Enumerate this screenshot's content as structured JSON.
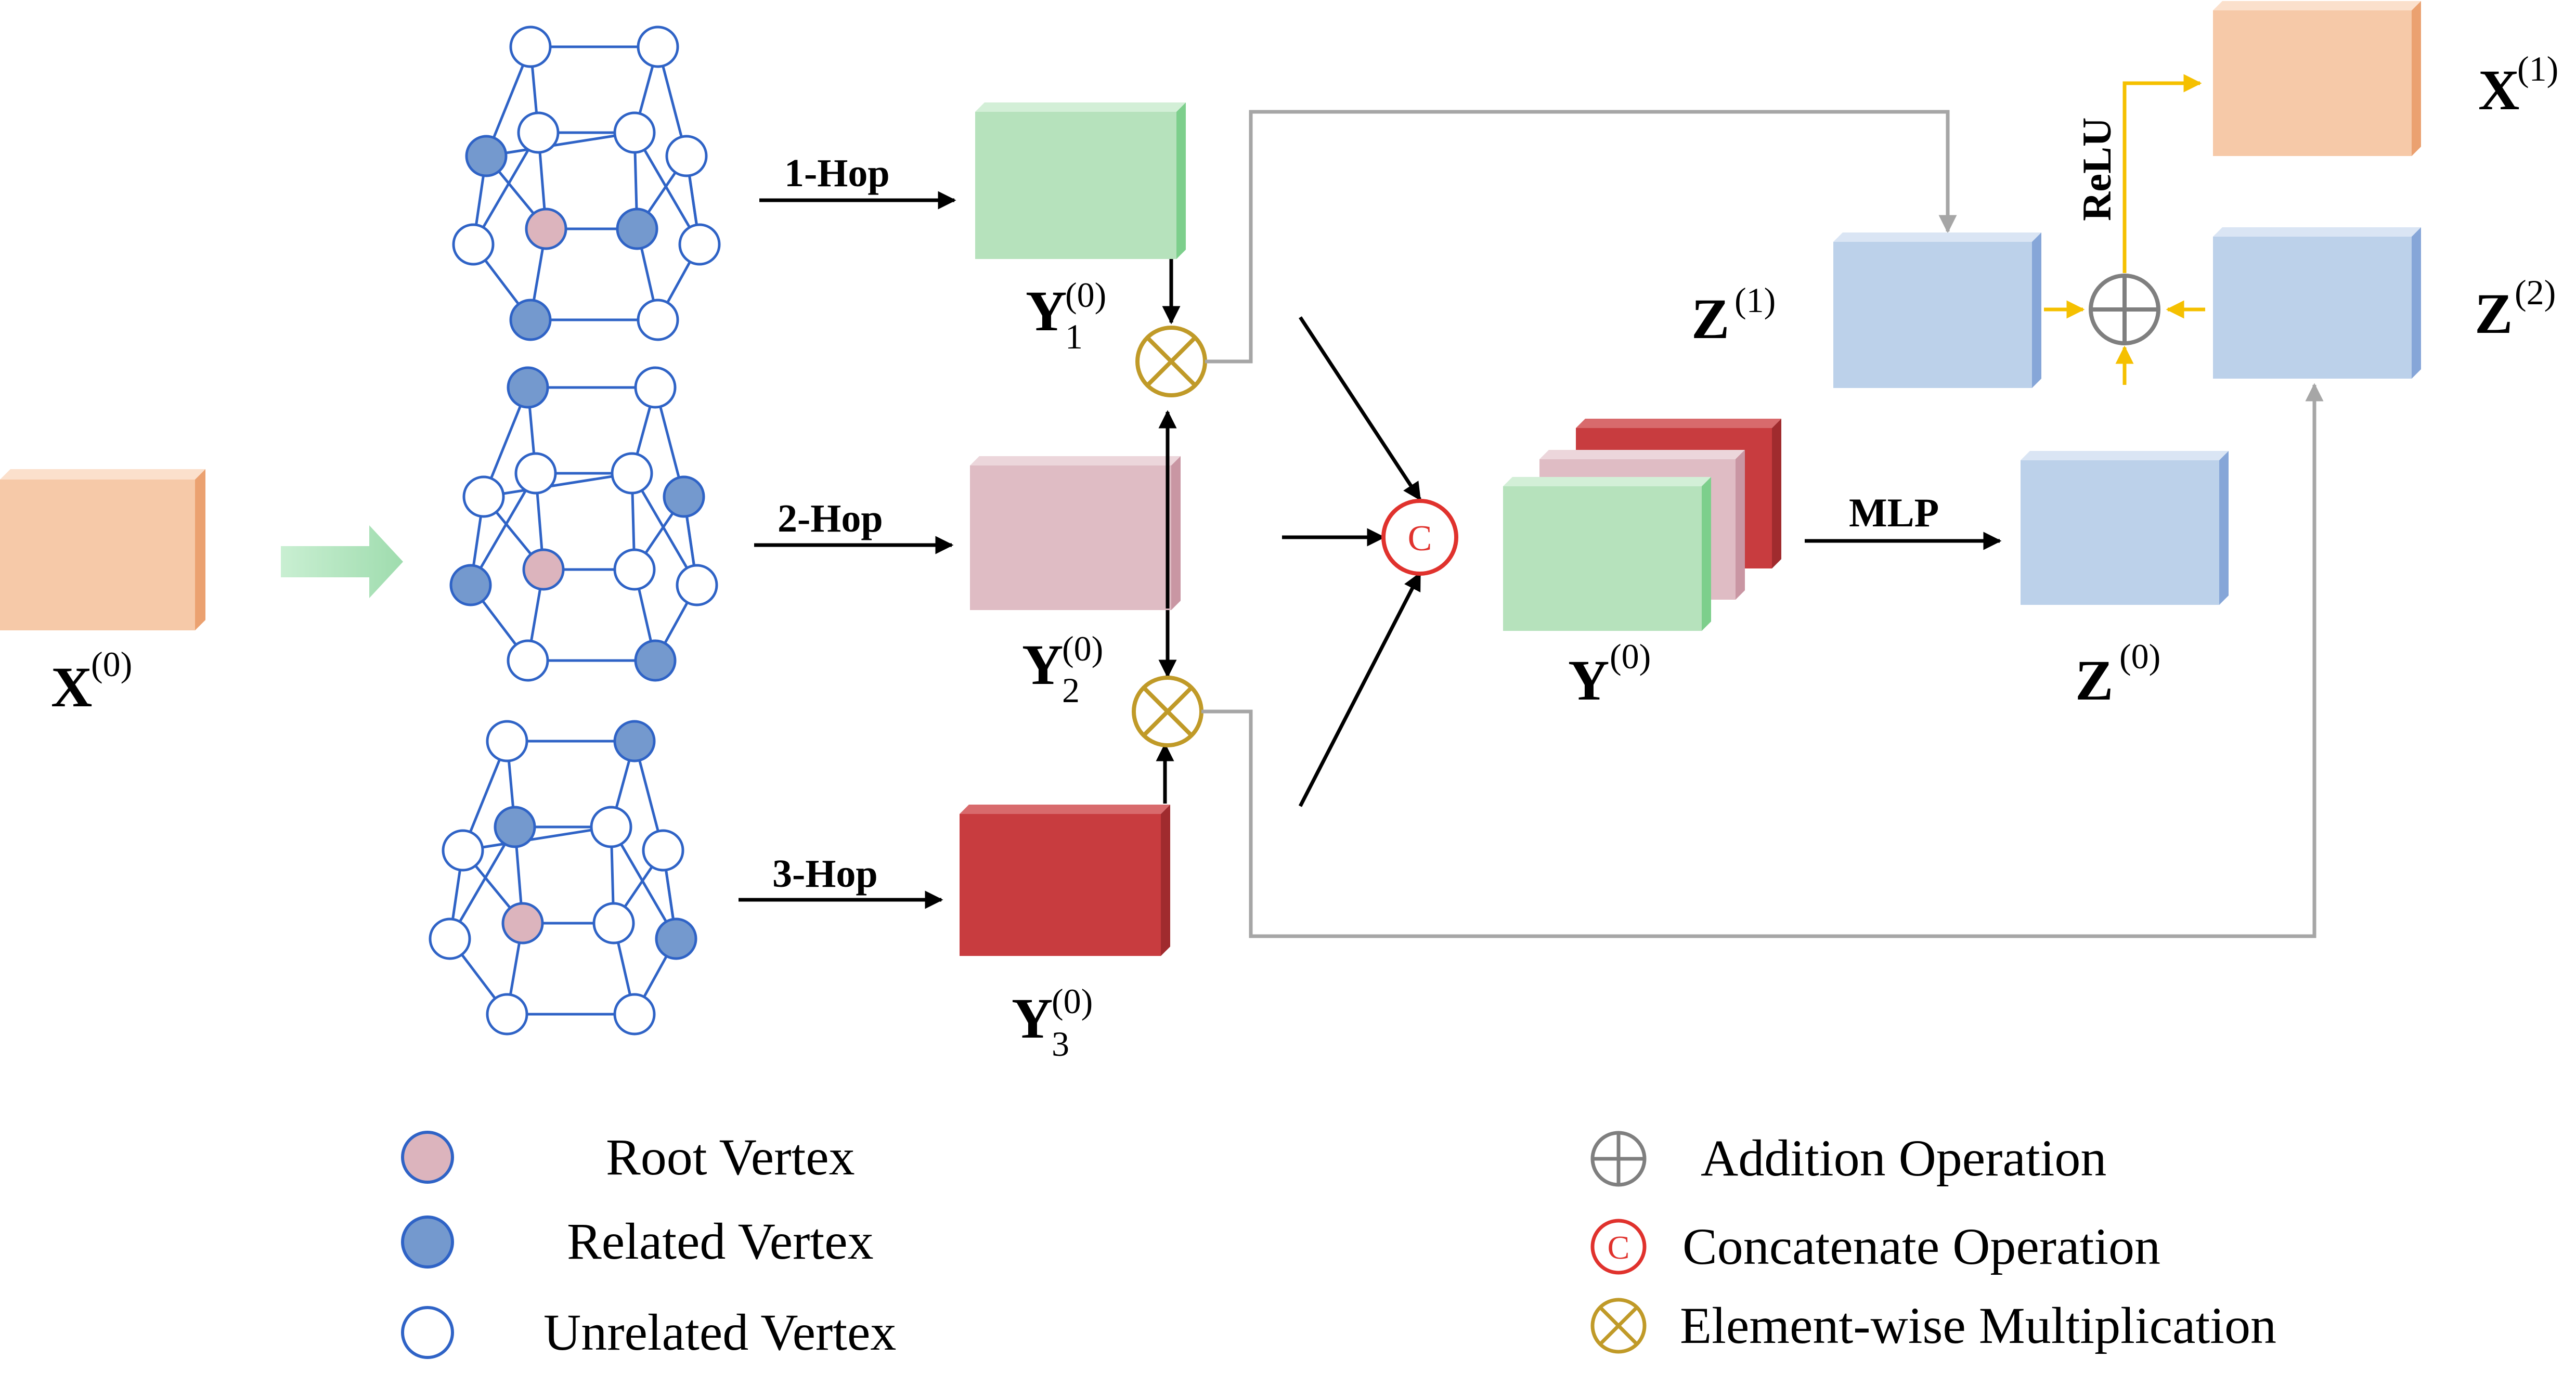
{
  "input_label": "X",
  "output_x_label": "X",
  "z1_label": "Z",
  "z2_label": "Z",
  "z0_label": "Z",
  "y0_label": "Y",
  "y1_label": "Y",
  "y2_label": "Y",
  "y3_label": "Y",
  "sup0": "(0)",
  "sup1": "(1)",
  "sup2": "(2)",
  "sub1": "1",
  "sub2": "2",
  "sub3": "3",
  "hop1": "1-Hop",
  "hop2": "2-Hop",
  "hop3": "3-Hop",
  "mlp": "MLP",
  "relu": "ReLU",
  "concat_symbol": "C",
  "legend": {
    "root": "Root Vertex",
    "related": "Related Vertex",
    "unrelated": "Unrelated Vertex",
    "addition": "Addition  Operation",
    "concatenate": "Concatenate Operation",
    "multiplication": "Element-wise Multiplication"
  },
  "colors": {
    "orange": "#f6c9a8",
    "green": "#b6e2bc",
    "pink": "#dfbcc4",
    "red": "#c83c3f",
    "blue": "#bcd1ea",
    "vertex_blue": "#7499ce",
    "vertex_pink": "#dcb4bd",
    "edge_blue": "#2f63c6",
    "gold": "#c09a28",
    "yellow": "#f5c000",
    "gray": "#a6a6a6",
    "concat_red": "#e0322d"
  }
}
